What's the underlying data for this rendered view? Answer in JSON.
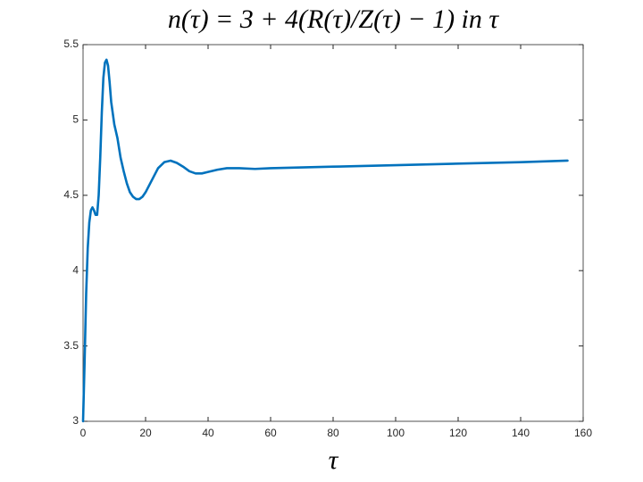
{
  "chart_data": {
    "type": "line",
    "title": "n(τ) = 3 + 4(R(τ)/Z(τ) − 1) in τ",
    "x_label": "τ",
    "x": [
      0,
      0.5,
      1,
      1.5,
      2,
      2.5,
      3,
      3.5,
      4,
      4.5,
      5,
      5.5,
      6,
      6.5,
      7,
      7.5,
      8,
      8.5,
      9,
      10,
      11,
      12,
      13,
      14,
      15,
      16,
      17,
      18,
      19,
      20,
      22,
      24,
      26,
      28,
      30,
      32,
      34,
      36,
      38,
      40,
      43,
      46,
      50,
      55,
      60,
      70,
      80,
      100,
      120,
      140,
      155
    ],
    "series": [
      {
        "name": "n",
        "color": "#0072bd",
        "values": [
          3,
          3.4,
          3.85,
          4.15,
          4.32,
          4.4,
          4.42,
          4.4,
          4.37,
          4.37,
          4.5,
          4.75,
          5.05,
          5.28,
          5.38,
          5.4,
          5.36,
          5.25,
          5.12,
          4.97,
          4.88,
          4.75,
          4.66,
          4.58,
          4.52,
          4.49,
          4.475,
          4.475,
          4.49,
          4.52,
          4.6,
          4.68,
          4.72,
          4.73,
          4.715,
          4.69,
          4.66,
          4.645,
          4.645,
          4.655,
          4.67,
          4.68,
          4.68,
          4.675,
          4.68,
          4.685,
          4.69,
          4.7,
          4.71,
          4.72,
          4.73
        ]
      }
    ],
    "xlim": [
      0,
      160
    ],
    "xticks": [
      0,
      20,
      40,
      60,
      80,
      100,
      120,
      140,
      160
    ],
    "ylim": [
      3,
      5.5
    ],
    "yticks": [
      3,
      3.5,
      4,
      4.5,
      5,
      5.5
    ],
    "grid": false
  }
}
